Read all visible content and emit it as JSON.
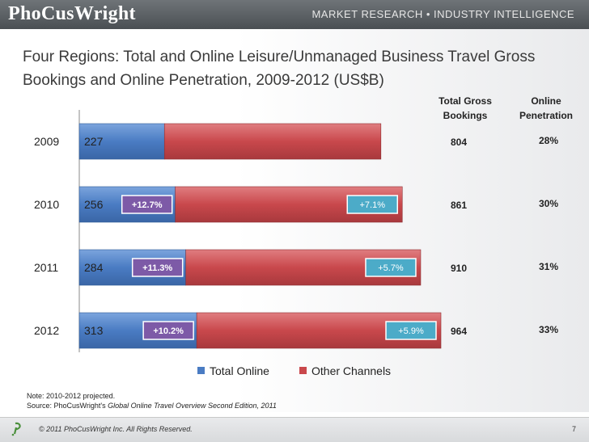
{
  "header": {
    "logo": "PhoCusWright",
    "tagline": "MARKET RESEARCH • INDUSTRY INTELLIGENCE"
  },
  "colors": {
    "online": "#4a7cc3",
    "other": "#c9484c",
    "online_growth_badge": "#7d5aa7",
    "other_growth_badge": "#4cabc8"
  },
  "chart_data": {
    "type": "bar",
    "orientation": "horizontal",
    "stacked": true,
    "title": "Four Regions: Total and Online Leisure/Unmanaged Business Travel Gross Bookings and Online Penetration, 2009-2012 (US$B)",
    "categories": [
      "2009",
      "2010",
      "2011",
      "2012"
    ],
    "series": [
      {
        "name": "Total Online",
        "values": [
          227,
          256,
          284,
          313
        ]
      },
      {
        "name": "Other Channels",
        "values": [
          577,
          605,
          626,
          651
        ]
      }
    ],
    "online_labels": [
      "227",
      "256",
      "284",
      "313"
    ],
    "online_growth": [
      "",
      "+12.7%",
      "+11.3%",
      "+10.2%"
    ],
    "other_growth": [
      "",
      "+7.1%",
      "+5.7%",
      "+5.9%"
    ],
    "total_header": [
      "Total Gross",
      "Bookings"
    ],
    "penetration_header": [
      "Online",
      "Penetration"
    ],
    "totals": [
      "804",
      "861",
      "910",
      "964"
    ],
    "penetration": [
      "28%",
      "30%",
      "31%",
      "33%"
    ],
    "xlim": [
      0,
      964
    ],
    "grid": false,
    "legend_position": "bottom"
  },
  "note": "Note: 2010-2012 projected.",
  "source_prefix": "Source: PhoCusWright's ",
  "source_title": "Global Online Travel Overview Second Edition, 2011",
  "footer": {
    "copyright": "© 2011 PhoCusWright Inc.  All Rights Reserved.",
    "page_number": "7"
  }
}
